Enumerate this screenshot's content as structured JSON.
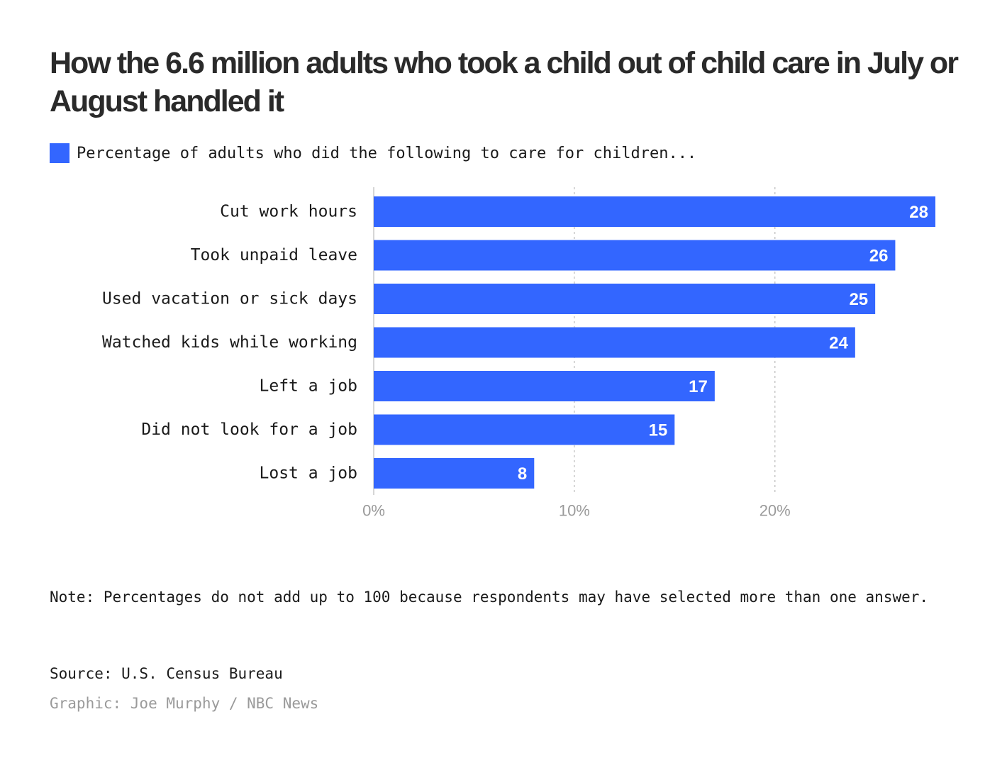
{
  "title": "How the 6.6 million adults who took a child out of child care in July or August handled it",
  "legend": {
    "label": "Percentage of adults who did the following to care for children..."
  },
  "colors": {
    "bar": "#3366ff",
    "grid": "#c8c8c8",
    "tick_text": "#9a9a9a",
    "category_text": "#1a1a1a",
    "value_text": "#ffffff"
  },
  "note": "Note: Percentages do not add up to 100 because respondents may have selected more than one answer.",
  "source": "Source: U.S. Census Bureau",
  "credit": "Graphic: Joe Murphy / NBC News",
  "chart_data": {
    "type": "bar",
    "orientation": "horizontal",
    "categories": [
      "Cut work hours",
      "Took unpaid leave",
      "Used vacation or sick days",
      "Watched kids while working",
      "Left a job",
      "Did not look for a job",
      "Lost a job"
    ],
    "values": [
      28,
      26,
      25,
      24,
      17,
      15,
      8
    ],
    "series_name": "Percentage of adults who did the following to care for children...",
    "xlim": [
      0,
      28
    ],
    "xticks": [
      0,
      10,
      20
    ],
    "xtick_labels": [
      "0%",
      "10%",
      "20%"
    ],
    "grid": true,
    "xlabel": "",
    "ylabel": ""
  }
}
